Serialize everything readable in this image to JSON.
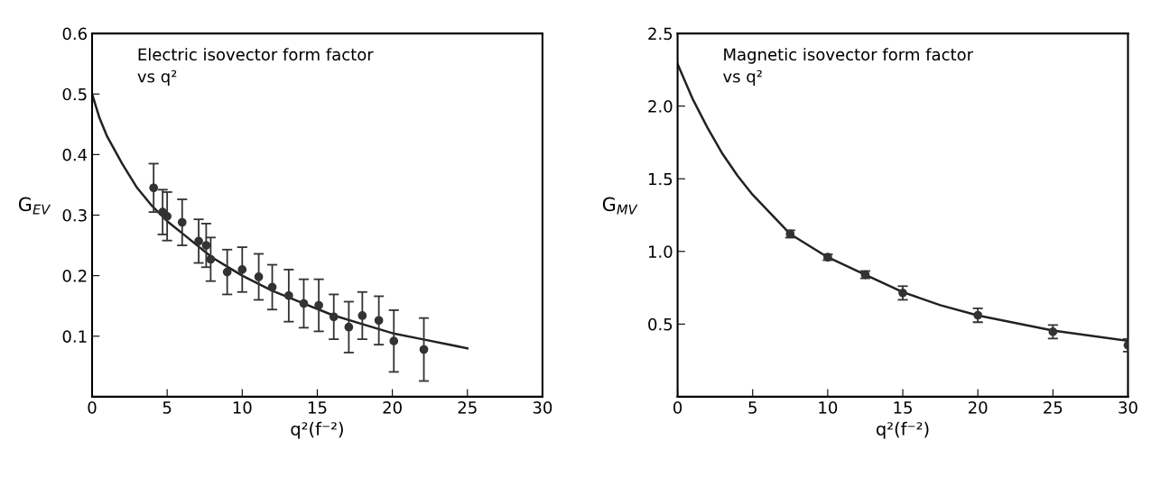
{
  "chart_data": [
    {
      "type": "scatter",
      "title": "Electric isovector form factor\nvs q²",
      "xlabel": "q²(f⁻²)",
      "ylabel": "G$_{EV}$",
      "xlim": [
        0,
        30
      ],
      "ylim": [
        0,
        0.6
      ],
      "xticks": [
        0,
        5,
        10,
        15,
        20,
        25,
        30
      ],
      "yticks": [
        0.1,
        0.2,
        0.3,
        0.4,
        0.5,
        0.6
      ],
      "grid": false,
      "series": [
        {
          "marker": "circle",
          "color": "#333333",
          "x": [
            4.1,
            4.7,
            5.0,
            6.0,
            7.1,
            7.6,
            7.9,
            9.0,
            10.0,
            11.1,
            12.0,
            13.1,
            14.1,
            15.1,
            16.1,
            17.1,
            18.0,
            19.1,
            20.1,
            22.1
          ],
          "values": [
            0.345,
            0.305,
            0.298,
            0.288,
            0.257,
            0.25,
            0.227,
            0.206,
            0.21,
            0.198,
            0.181,
            0.167,
            0.154,
            0.151,
            0.132,
            0.115,
            0.134,
            0.126,
            0.092,
            0.078
          ],
          "errors": [
            0.04,
            0.037,
            0.04,
            0.038,
            0.036,
            0.036,
            0.036,
            0.037,
            0.037,
            0.038,
            0.037,
            0.043,
            0.04,
            0.043,
            0.037,
            0.042,
            0.039,
            0.04,
            0.051,
            0.052
          ]
        },
        {
          "type": "line",
          "color": "#222222",
          "x": [
            0,
            0.5,
            1,
            2,
            3,
            4,
            5,
            6,
            8,
            10,
            12,
            14,
            16,
            18,
            20,
            22,
            25
          ],
          "values": [
            0.5,
            0.46,
            0.43,
            0.385,
            0.345,
            0.315,
            0.29,
            0.27,
            0.23,
            0.2,
            0.175,
            0.155,
            0.135,
            0.12,
            0.105,
            0.095,
            0.08
          ]
        }
      ]
    },
    {
      "type": "scatter",
      "title": "Magnetic isovector form factor\nvs q²",
      "xlabel": "q²(f⁻²)",
      "ylabel": "G$_{MV}$",
      "xlim": [
        0,
        30
      ],
      "ylim": [
        0,
        2.5
      ],
      "xticks": [
        0,
        5,
        10,
        15,
        20,
        25,
        30
      ],
      "yticks": [
        0.5,
        {
          "value": 1,
          "label": "1.0"
        },
        1.5,
        {
          "value": 2,
          "label": "2.0"
        },
        2.5
      ],
      "grid": false,
      "series": [
        {
          "marker": "circle",
          "color": "#333333",
          "x": [
            7.5,
            10,
            12.5,
            15,
            20,
            25,
            30
          ],
          "values": [
            1.12,
            0.96,
            0.84,
            0.714,
            0.561,
            0.447,
            0.354
          ],
          "errors": [
            0.025,
            0.02,
            0.025,
            0.047,
            0.048,
            0.046,
            0.043
          ]
        },
        {
          "type": "line",
          "color": "#222222",
          "x": [
            0,
            1,
            2,
            3,
            4,
            5,
            7.5,
            10,
            12.5,
            15,
            17.5,
            20,
            25,
            30
          ],
          "values": [
            2.29,
            2.05,
            1.85,
            1.67,
            1.52,
            1.39,
            1.12,
            0.96,
            0.84,
            0.72,
            0.63,
            0.56,
            0.455,
            0.385
          ]
        }
      ]
    }
  ]
}
